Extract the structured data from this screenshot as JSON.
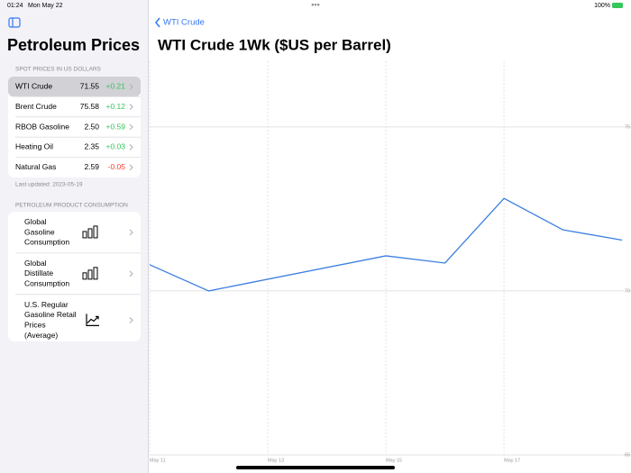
{
  "status_bar": {
    "time": "01:24",
    "date": "Mon May 22",
    "battery": "100%"
  },
  "sidebar": {
    "title": "Petroleum Prices",
    "spot_header": "SPOT PRICES IN US DOLLARS",
    "spot_rows": [
      {
        "name": "WTI Crude",
        "price": "71.55",
        "change": "+0.21",
        "selected": true
      },
      {
        "name": "Brent Crude",
        "price": "75.58",
        "change": "+0.12",
        "selected": false
      },
      {
        "name": "RBOB Gasoline",
        "price": "2.50",
        "change": "+0.59",
        "selected": false
      },
      {
        "name": "Heating Oil",
        "price": "2.35",
        "change": "+0.03",
        "selected": false
      },
      {
        "name": "Natural Gas",
        "price": "2.59",
        "change": "-0.05",
        "selected": false
      }
    ],
    "last_updated": "Last updated: 2023-05-19",
    "consumption_header": "PETROLEUM PRODUCT CONSUMPTION",
    "consumption_rows": [
      {
        "label": [
          "Global",
          "Gasoline",
          "Consumption"
        ],
        "icon": "bar"
      },
      {
        "label": [
          "Global",
          "Distillate",
          "Consumption"
        ],
        "icon": "bar"
      },
      {
        "label": [
          "U.S. Regular",
          "Gasoline Retail",
          "Prices",
          "(Average)"
        ],
        "icon": "line"
      }
    ]
  },
  "detail": {
    "back": "WTI Crude"
  },
  "chart_data": {
    "type": "line",
    "title": "WTI Crude 1Wk ($US per Barrel)",
    "x": [
      11,
      12,
      15,
      16,
      17,
      18,
      19
    ],
    "series": [
      {
        "name": "WTI Crude",
        "color": "#3a7fe0",
        "values": [
          70.8,
          70.0,
          71.07,
          70.85,
          72.82,
          71.86,
          71.55
        ]
      }
    ],
    "xlim": [
      11,
      19.15
    ],
    "xticks": [
      {
        "value": 11,
        "label": "May 11"
      },
      {
        "value": 13,
        "label": "May 13"
      },
      {
        "value": 15,
        "label": "May 15"
      },
      {
        "value": 17,
        "label": "May 17"
      }
    ],
    "ylim": [
      65,
      77
    ],
    "yticks": [
      65,
      70,
      75
    ],
    "grid": true
  }
}
